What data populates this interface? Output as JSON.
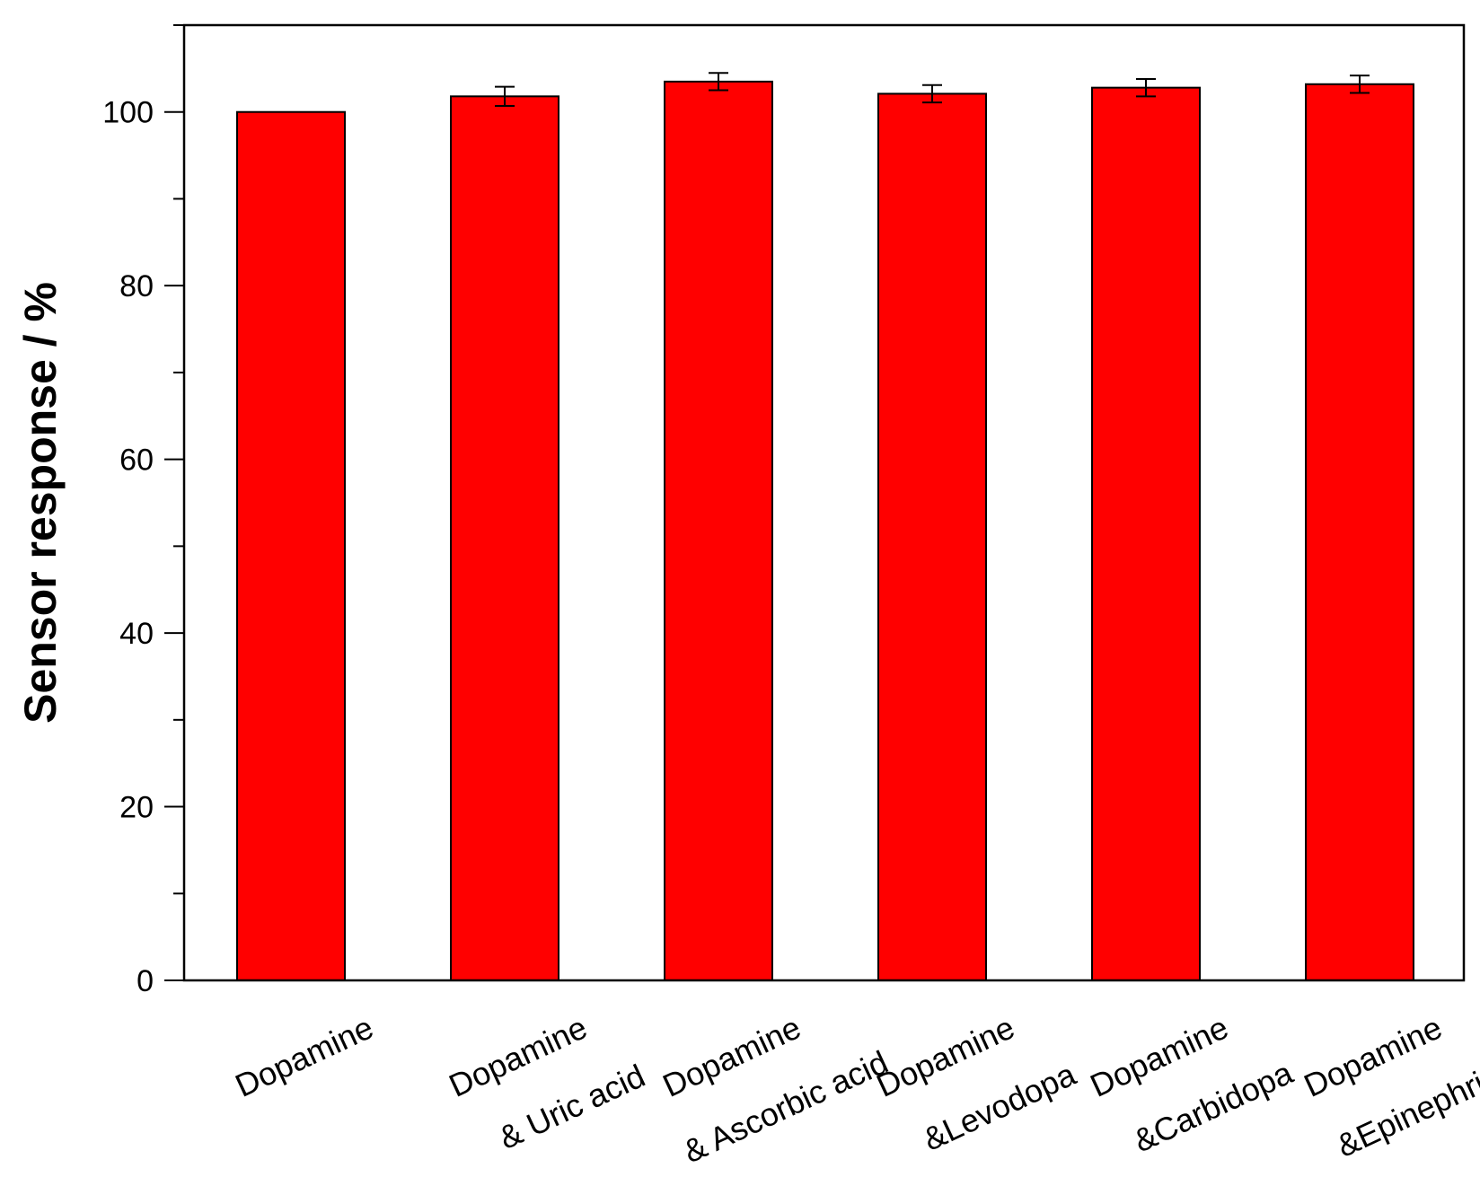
{
  "chart_data": {
    "type": "bar",
    "title": "",
    "xlabel": "",
    "ylabel": "Sensor response / %",
    "ylim": [
      0,
      110
    ],
    "yticks": [
      0,
      20,
      40,
      60,
      80,
      100
    ],
    "minor_tick_step": 10,
    "grid": false,
    "categories": [
      {
        "line1": "Dopamine",
        "line2": ""
      },
      {
        "line1": "Dopamine",
        "line2": "& Uric acid"
      },
      {
        "line1": "Dopamine",
        "line2": "& Ascorbic acid"
      },
      {
        "line1": "Dopamine",
        "line2": "&Levodopa"
      },
      {
        "line1": "Dopamine",
        "line2": "&Carbidopa"
      },
      {
        "line1": "Dopamine",
        "line2": "&Epinephrine"
      }
    ],
    "values": [
      100,
      101.8,
      103.5,
      102.1,
      102.8,
      103.2
    ],
    "errors": [
      0,
      1.1,
      1.0,
      1.0,
      1.0,
      1.0
    ],
    "bar_color": "#ff0000",
    "edge_color": "#000000"
  }
}
